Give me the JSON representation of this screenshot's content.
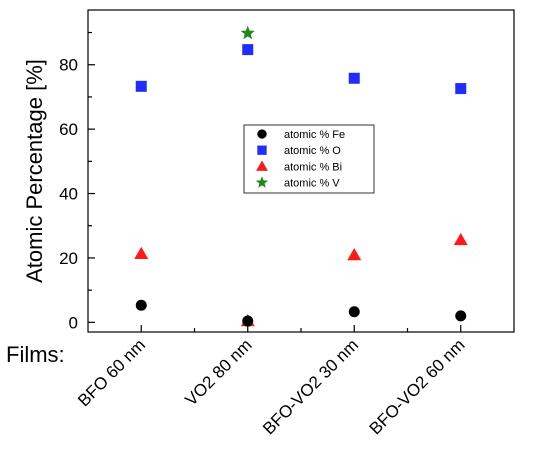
{
  "chart_data": {
    "type": "scatter",
    "title": "",
    "xlabel": "Films:",
    "ylabel": "Atomic Percentage [%]",
    "ylim": [
      -3,
      97
    ],
    "yticks": [
      0,
      20,
      40,
      60,
      80
    ],
    "categories": [
      "BFO 60 nm",
      "VO2 80 nm",
      "BFO-VO2 30 nm",
      "BFO-VO2 60 nm"
    ],
    "grid": false,
    "legend_position": "center",
    "series": [
      {
        "name": "atomic % Fe",
        "marker": "circle",
        "color": "#000000",
        "values": [
          5.3,
          0.4,
          3.3,
          2.0
        ]
      },
      {
        "name": "atomic % O",
        "marker": "square",
        "color": "#1f2eff",
        "values": [
          73.3,
          84.7,
          75.8,
          72.6
        ]
      },
      {
        "name": "atomic % Bi",
        "marker": "triangle",
        "color": "#ff1a1a",
        "values": [
          21.3,
          0.4,
          20.9,
          25.6
        ]
      },
      {
        "name": "atomic % V",
        "marker": "star",
        "color": "#1b8a1b",
        "values": [
          null,
          89.8,
          null,
          null
        ]
      }
    ]
  }
}
